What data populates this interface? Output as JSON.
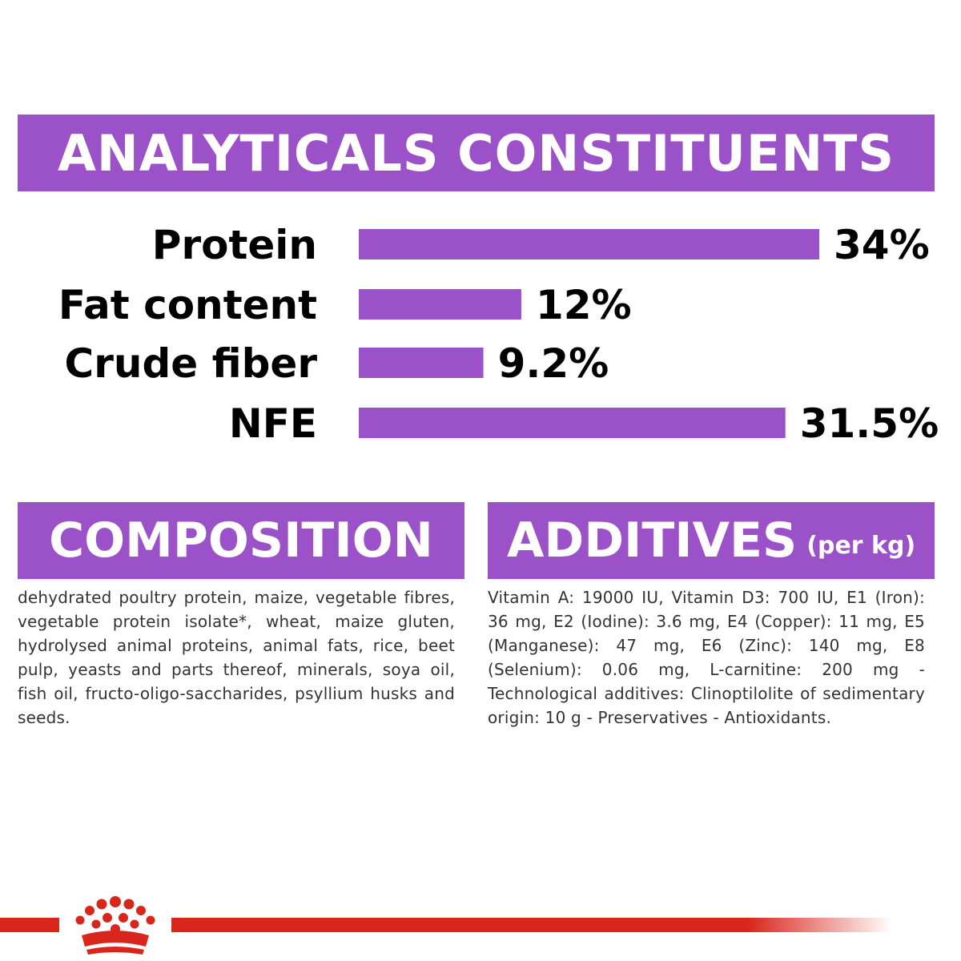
{
  "header": {
    "title": "ANALYTICALS CONSTITUENTS"
  },
  "colors": {
    "accent": "#9b51c8",
    "brand_red": "#d9261c",
    "text": "#000000",
    "body_text": "#333333"
  },
  "chart_data": {
    "type": "bar",
    "orientation": "horizontal",
    "title": "ANALYTICALS CONSTITUENTS",
    "categories": [
      "Protein",
      "Fat content",
      "Crude fiber",
      "NFE"
    ],
    "values": [
      34,
      12,
      9.2,
      31.5
    ],
    "value_labels": [
      "34%",
      "12%",
      "9.2%",
      "31.5%"
    ],
    "unit": "%",
    "xlim": [
      0,
      34
    ]
  },
  "composition": {
    "title": "COMPOSITION",
    "text": "dehydrated poultry protein, maize, vegetable fibres, vegetable protein isolate*, wheat, maize gluten, hydrolysed animal proteins, animal fats, rice, beet pulp, yeasts and parts thereof, minerals, soya oil, fish oil, fructo-oligo-saccharides, psyllium husks and seeds."
  },
  "additives": {
    "title": "ADDITIVES",
    "subtitle": "(per kg)",
    "text": "Vitamin A: 19000 IU, Vitamin D3: 700 IU, E1 (Iron): 36 mg, E2 (Iodine): 3.6 mg, E4 (Copper): 11 mg, E5 (Manganese): 47 mg, E6 (Zinc): 140 mg, E8 (Selenium): 0.06 mg, L-carnitine: 200 mg - Technological additives: Clinoptilolite of sedimentary origin: 10 g - Preservatives - Antioxidants."
  },
  "footer": {
    "logo_icon": "crown-icon"
  }
}
